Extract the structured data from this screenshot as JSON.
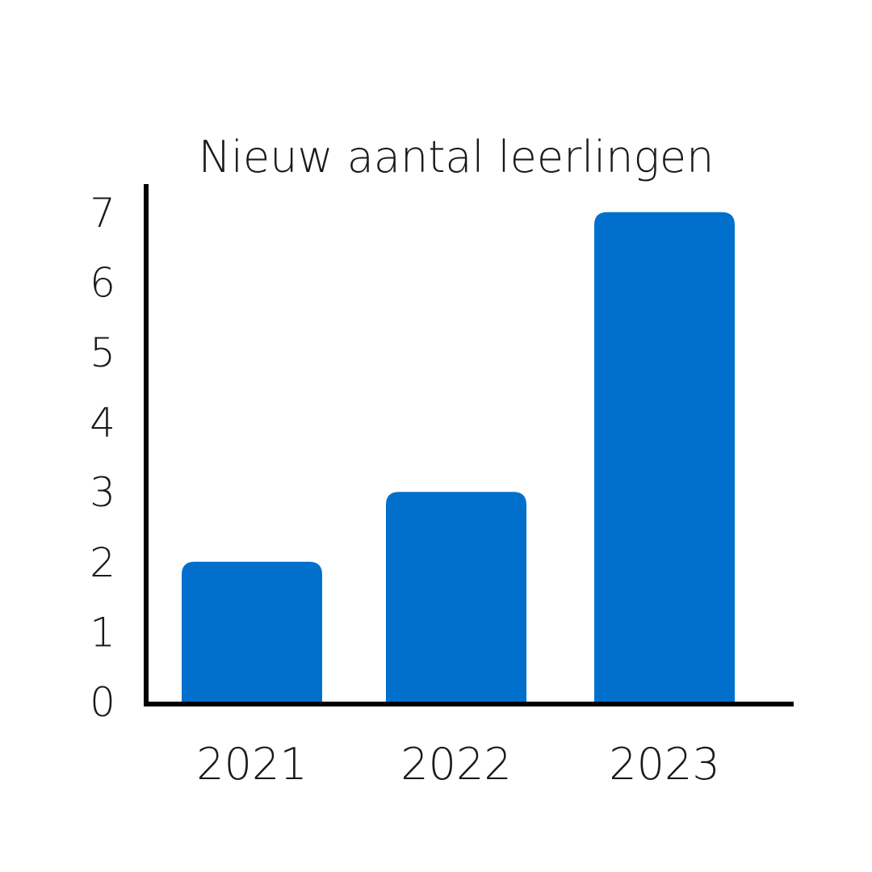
{
  "chart_data": {
    "type": "bar",
    "title": "Nieuw aantal leerlingen",
    "categories": [
      "2021",
      "2022",
      "2023"
    ],
    "values": [
      2,
      3,
      7
    ],
    "ylim": [
      0,
      7
    ],
    "yticks": [
      "0",
      "1",
      "2",
      "3",
      "4",
      "5",
      "6",
      "7"
    ],
    "xlabel": "",
    "ylabel": "",
    "grid": false,
    "bar_color": "#0070CC",
    "axis_color": "#000000"
  }
}
